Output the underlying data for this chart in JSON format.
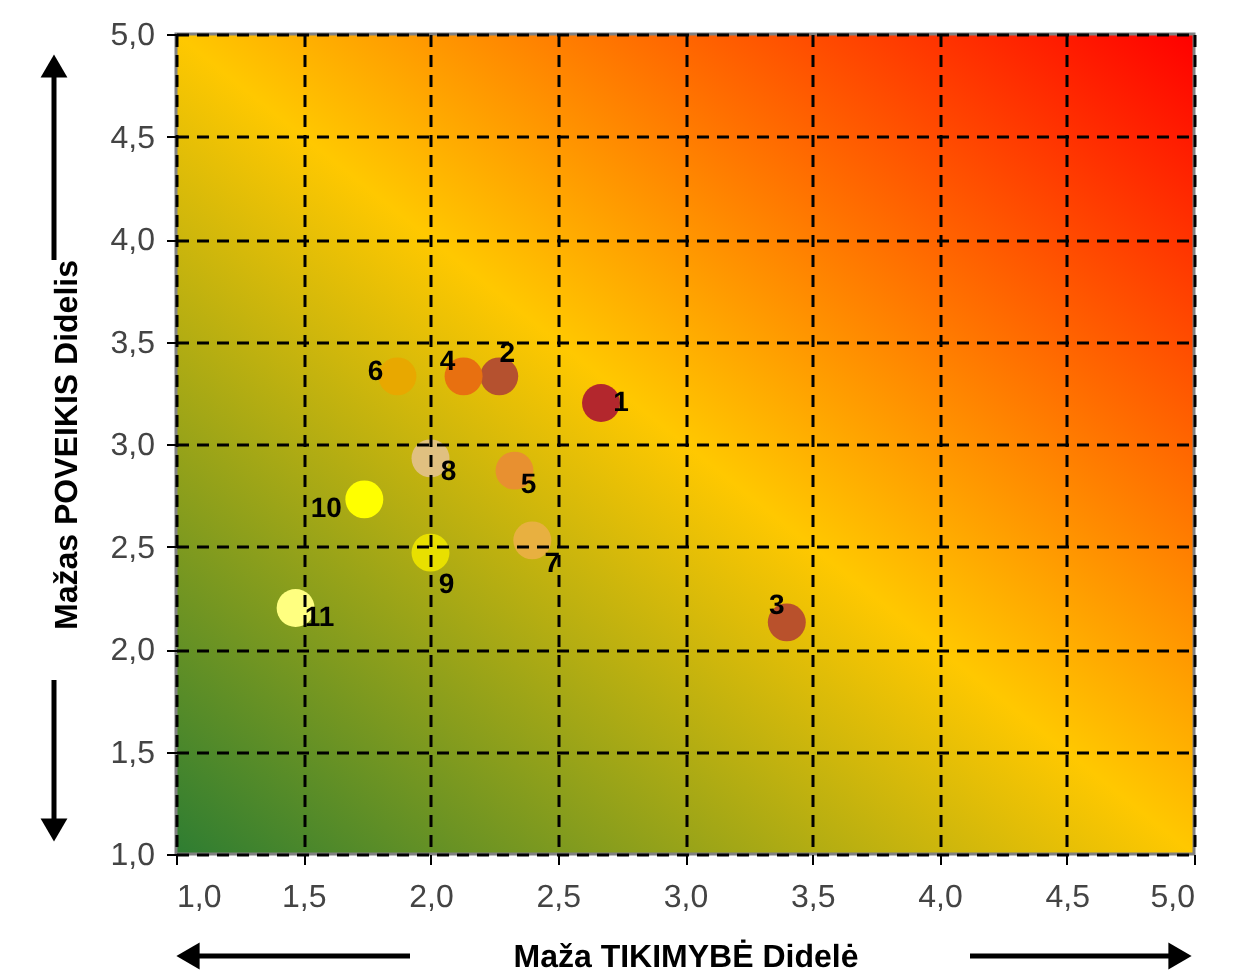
{
  "chart_data": {
    "type": "scatter",
    "xlabel": "Maža TIKIMYBĖ Didelė",
    "ylabel": "Mažas POVEIKIS Didelis",
    "x": [
      2.67,
      2.27,
      3.4,
      2.13,
      2.33,
      1.87,
      2.4,
      2.0,
      2.0,
      1.74,
      1.47
    ],
    "values": [
      3.2,
      3.33,
      2.13,
      3.33,
      2.87,
      3.33,
      2.53,
      2.93,
      2.47,
      2.73,
      2.2
    ],
    "colors": [
      "#b3272d",
      "#b5512f",
      "#b9512c",
      "#e87010",
      "#e89030",
      "#e8a800",
      "#e8b040",
      "#e0c080",
      "#e8e000",
      "#ffff00",
      "#ffff80"
    ],
    "annotations": [
      {
        "text": "1",
        "x": 2.67,
        "y": 3.2
      },
      {
        "text": "2",
        "x": 2.27,
        "y": 3.33
      },
      {
        "text": "3",
        "x": 3.4,
        "y": 2.13
      },
      {
        "text": "4",
        "x": 2.13,
        "y": 3.33
      },
      {
        "text": "5",
        "x": 2.33,
        "y": 2.87
      },
      {
        "text": "6",
        "x": 1.87,
        "y": 3.33
      },
      {
        "text": "7",
        "x": 2.4,
        "y": 2.53
      },
      {
        "text": "8",
        "x": 2.0,
        "y": 2.93
      },
      {
        "text": "9",
        "x": 2.0,
        "y": 2.47
      },
      {
        "text": "10",
        "x": 1.74,
        "y": 2.73
      },
      {
        "text": "11",
        "x": 1.47,
        "y": 2.2
      }
    ],
    "xlim": [
      1,
      5
    ],
    "ylim": [
      1,
      5
    ],
    "xticks": [
      {
        "value": 1,
        "label": "1,0"
      },
      {
        "value": 1.5,
        "label": "1,5"
      },
      {
        "value": 2,
        "label": "2,0"
      },
      {
        "value": 2.5,
        "label": "2,5"
      },
      {
        "value": 3,
        "label": "3,0"
      },
      {
        "value": 3.5,
        "label": "3,5"
      },
      {
        "value": 4,
        "label": "4,0"
      },
      {
        "value": 4.5,
        "label": "4,5"
      },
      {
        "value": 5,
        "label": "5,0"
      }
    ],
    "yticks": [
      {
        "value": 1,
        "label": "1,0"
      },
      {
        "value": 1.5,
        "label": "1,5"
      },
      {
        "value": 2,
        "label": "2,0"
      },
      {
        "value": 2.5,
        "label": "2,5"
      },
      {
        "value": 3,
        "label": "3,0"
      },
      {
        "value": 3.5,
        "label": "3,5"
      },
      {
        "value": 4,
        "label": "4,0"
      },
      {
        "value": 4.5,
        "label": "4,5"
      },
      {
        "value": 5,
        "label": "5,0"
      }
    ],
    "grid": true,
    "marker": "circle"
  }
}
